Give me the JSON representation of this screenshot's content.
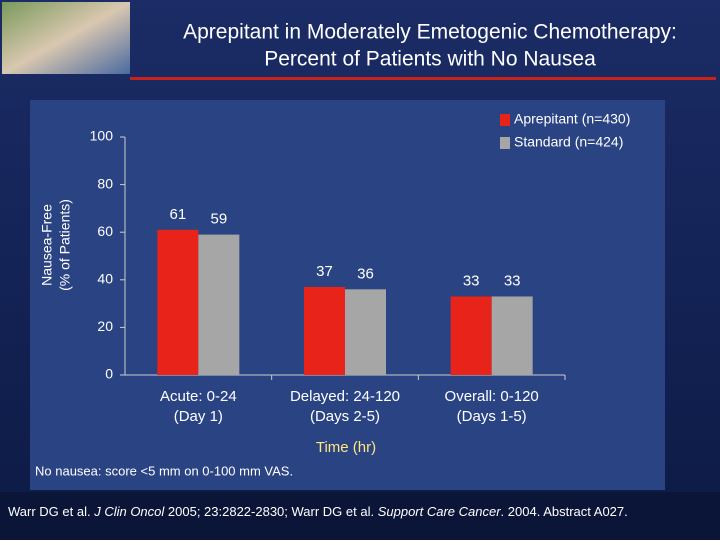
{
  "chart_data": {
    "type": "bar",
    "title": [
      "Aprepitant in Moderately Emetogenic Chemotherapy:",
      "Percent of Patients with No Nausea"
    ],
    "ylabel": [
      "Nausea-Free",
      "(% of Patients)"
    ],
    "xlabel": "Time (hr)",
    "categories": [
      [
        "Acute: 0-24",
        "(Day 1)"
      ],
      [
        "Delayed: 24-120",
        "(Days 2-5)"
      ],
      [
        "Overall: 0-120",
        "(Days 1-5)"
      ]
    ],
    "series": [
      {
        "name": "Aprepitant (n=430)",
        "color": "#e8231a",
        "values": [
          61,
          37,
          33
        ]
      },
      {
        "name": "Standard (n=424)",
        "color": "#a6a6a6",
        "values": [
          59,
          36,
          33
        ]
      }
    ],
    "ylim": [
      0,
      100
    ],
    "yticks": [
      0,
      20,
      40,
      60,
      80,
      100
    ],
    "footnote": "No nausea: score <5 mm on 0-100 mm VAS.",
    "citation": [
      "Warr DG et al. ",
      "J Clin Oncol",
      " 2005; 23:2822-2830;  Warr DG et al. ",
      "Support Care Cancer",
      ". 2004. Abstract A027."
    ]
  }
}
